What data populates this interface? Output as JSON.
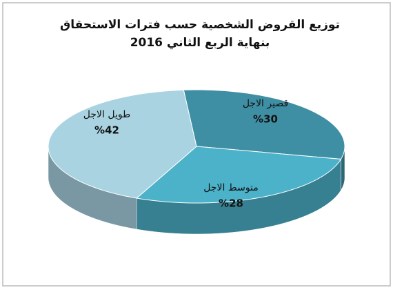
{
  "chart_data": {
    "type": "pie",
    "title": "توزيع القروض الشخصية حسب فترات  الاستحقاق",
    "subtitle": "بنهاية الربع الثاني 2016",
    "categories": [
      "قصير الاجل",
      "متوسط الاجل",
      "طويل الاجل"
    ],
    "values": [
      30,
      28,
      42
    ],
    "value_labels": [
      "%30",
      "%28",
      "%42"
    ],
    "colors": [
      "#3f8fa4",
      "#4bb2c9",
      "#aad3e2"
    ]
  }
}
